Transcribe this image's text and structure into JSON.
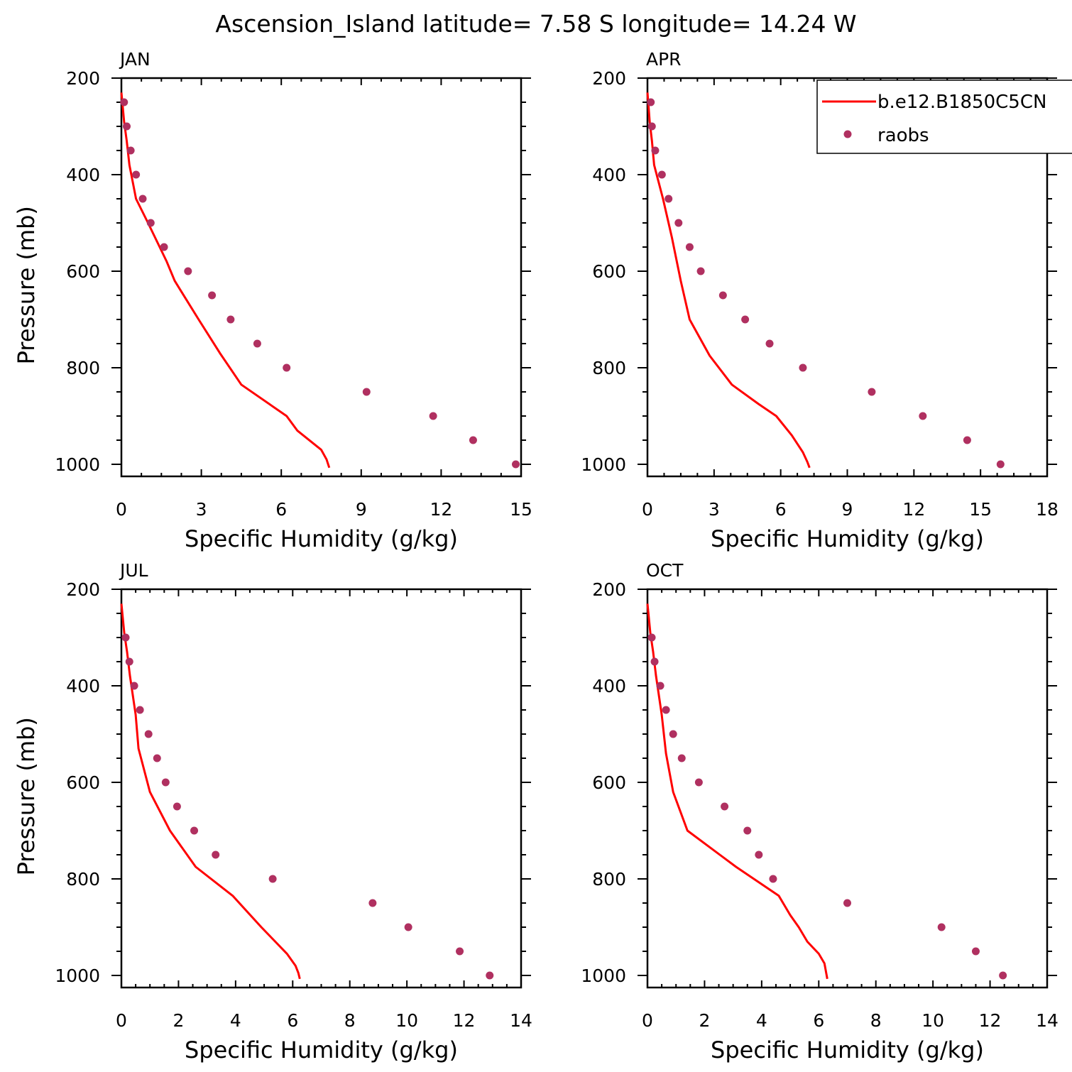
{
  "title": "Ascension_Island  latitude= 7.58 S longitude= 14.24 W",
  "colors": {
    "model": "#ff0000",
    "obs": "#b03060",
    "frame": "#000000"
  },
  "legend": {
    "model_label": "b.e12.B1850C5CN",
    "obs_label": "raobs",
    "position": "top-right of APR panel"
  },
  "chart_data": [
    {
      "type": "line+scatter",
      "title": "JAN",
      "xlabel": "Specific Humidity (g/kg)",
      "ylabel": "Pressure (mb)",
      "xlim": [
        0,
        15
      ],
      "ylim": [
        200,
        1025
      ],
      "y_inverted": true,
      "x_ticks": [
        0,
        3,
        6,
        9,
        12,
        15
      ],
      "x_tick_labels": [
        "0",
        "3",
        "6",
        "9",
        "12",
        "15"
      ],
      "y_ticks": [
        200,
        400,
        600,
        800,
        1000
      ],
      "y_tick_labels": [
        "200",
        "400",
        "600",
        "800",
        "1000"
      ],
      "series": [
        {
          "name": "b.e12.B1850C5CN",
          "kind": "line",
          "x": [
            0.0,
            0.05,
            0.1,
            0.2,
            0.3,
            0.55,
            1.0,
            1.7,
            2.0,
            2.9,
            3.7,
            4.5,
            6.2,
            6.6,
            7.5,
            7.7,
            7.8
          ],
          "y": [
            230,
            260,
            290,
            330,
            380,
            450,
            500,
            580,
            620,
            700,
            770,
            835,
            900,
            930,
            970,
            990,
            1007
          ]
        },
        {
          "name": "raobs",
          "kind": "scatter",
          "x": [
            0.1,
            0.2,
            0.35,
            0.55,
            0.8,
            1.1,
            1.6,
            2.5,
            3.4,
            4.1,
            5.1,
            6.2,
            9.2,
            11.7,
            13.2,
            14.8
          ],
          "y": [
            250,
            300,
            350,
            400,
            450,
            500,
            550,
            600,
            650,
            700,
            750,
            800,
            850,
            900,
            950,
            1000
          ]
        }
      ]
    },
    {
      "type": "line+scatter",
      "title": "APR",
      "xlabel": "Specific Humidity (g/kg)",
      "ylabel": "",
      "xlim": [
        0,
        18
      ],
      "ylim": [
        200,
        1025
      ],
      "y_inverted": true,
      "x_ticks": [
        0,
        3,
        6,
        9,
        12,
        15,
        18
      ],
      "x_tick_labels": [
        "0",
        "3",
        "6",
        "9",
        "12",
        "15",
        "18"
      ],
      "y_ticks": [
        200,
        400,
        600,
        800,
        1000
      ],
      "y_tick_labels": [
        "200",
        "400",
        "600",
        "800",
        "1000"
      ],
      "series": [
        {
          "name": "b.e12.B1850C5CN",
          "kind": "line",
          "x": [
            0.0,
            0.05,
            0.1,
            0.2,
            0.3,
            0.7,
            1.1,
            1.5,
            1.9,
            2.8,
            3.8,
            5.0,
            5.8,
            6.5,
            7.0,
            7.2,
            7.3
          ],
          "y": [
            230,
            260,
            290,
            330,
            380,
            450,
            530,
            620,
            700,
            775,
            835,
            875,
            900,
            940,
            975,
            995,
            1007
          ]
        },
        {
          "name": "raobs",
          "kind": "scatter",
          "x": [
            0.15,
            0.2,
            0.35,
            0.65,
            0.95,
            1.4,
            1.9,
            2.4,
            3.4,
            4.4,
            5.5,
            7.0,
            10.1,
            12.4,
            14.4,
            15.9
          ],
          "y": [
            250,
            300,
            350,
            400,
            450,
            500,
            550,
            600,
            650,
            700,
            750,
            800,
            850,
            900,
            950,
            1000
          ]
        }
      ]
    },
    {
      "type": "line+scatter",
      "title": "JUL",
      "xlabel": "Specific Humidity (g/kg)",
      "ylabel": "Pressure (mb)",
      "xlim": [
        0,
        14
      ],
      "ylim": [
        200,
        1025
      ],
      "y_inverted": true,
      "x_ticks": [
        0,
        2,
        4,
        6,
        8,
        10,
        12,
        14
      ],
      "x_tick_labels": [
        "0",
        "2",
        "4",
        "6",
        "8",
        "10",
        "12",
        "14"
      ],
      "y_ticks": [
        200,
        400,
        600,
        800,
        1000
      ],
      "y_tick_labels": [
        "200",
        "400",
        "600",
        "800",
        "1000"
      ],
      "series": [
        {
          "name": "b.e12.B1850C5CN",
          "kind": "line",
          "x": [
            0.0,
            0.05,
            0.1,
            0.2,
            0.3,
            0.5,
            0.6,
            1.0,
            1.7,
            2.6,
            3.9,
            4.9,
            5.8,
            6.1,
            6.2,
            6.25
          ],
          "y": [
            230,
            260,
            290,
            330,
            380,
            460,
            530,
            620,
            700,
            775,
            835,
            900,
            955,
            980,
            995,
            1007
          ]
        },
        {
          "name": "raobs",
          "kind": "scatter",
          "x": [
            0.15,
            0.28,
            0.45,
            0.65,
            0.95,
            1.25,
            1.55,
            1.95,
            2.55,
            3.3,
            5.3,
            8.8,
            10.05,
            11.85,
            12.9
          ],
          "y": [
            300,
            350,
            400,
            450,
            500,
            550,
            600,
            650,
            700,
            750,
            800,
            850,
            900,
            950,
            1000
          ]
        }
      ]
    },
    {
      "type": "line+scatter",
      "title": "OCT",
      "xlabel": "Specific Humidity (g/kg)",
      "ylabel": "",
      "xlim": [
        0,
        14
      ],
      "ylim": [
        200,
        1025
      ],
      "y_inverted": true,
      "x_ticks": [
        0,
        2,
        4,
        6,
        8,
        10,
        12,
        14
      ],
      "x_tick_labels": [
        "0",
        "2",
        "4",
        "6",
        "8",
        "10",
        "12",
        "14"
      ],
      "y_ticks": [
        200,
        400,
        600,
        800,
        1000
      ],
      "y_tick_labels": [
        "200",
        "400",
        "600",
        "800",
        "1000"
      ],
      "series": [
        {
          "name": "b.e12.B1850C5CN",
          "kind": "line",
          "x": [
            0.0,
            0.05,
            0.1,
            0.2,
            0.3,
            0.5,
            0.65,
            0.9,
            1.4,
            3.1,
            4.6,
            5.0,
            5.3,
            5.6,
            6.0,
            6.2,
            6.3
          ],
          "y": [
            230,
            260,
            290,
            330,
            380,
            460,
            540,
            620,
            700,
            775,
            835,
            875,
            900,
            930,
            955,
            975,
            1007
          ]
        },
        {
          "name": "raobs",
          "kind": "scatter",
          "x": [
            0.15,
            0.25,
            0.45,
            0.65,
            0.9,
            1.2,
            1.8,
            2.7,
            3.5,
            3.9,
            4.4,
            7.0,
            10.3,
            11.5,
            12.45
          ],
          "y": [
            300,
            350,
            400,
            450,
            500,
            550,
            600,
            650,
            700,
            750,
            800,
            850,
            900,
            950,
            1000
          ]
        }
      ]
    }
  ]
}
